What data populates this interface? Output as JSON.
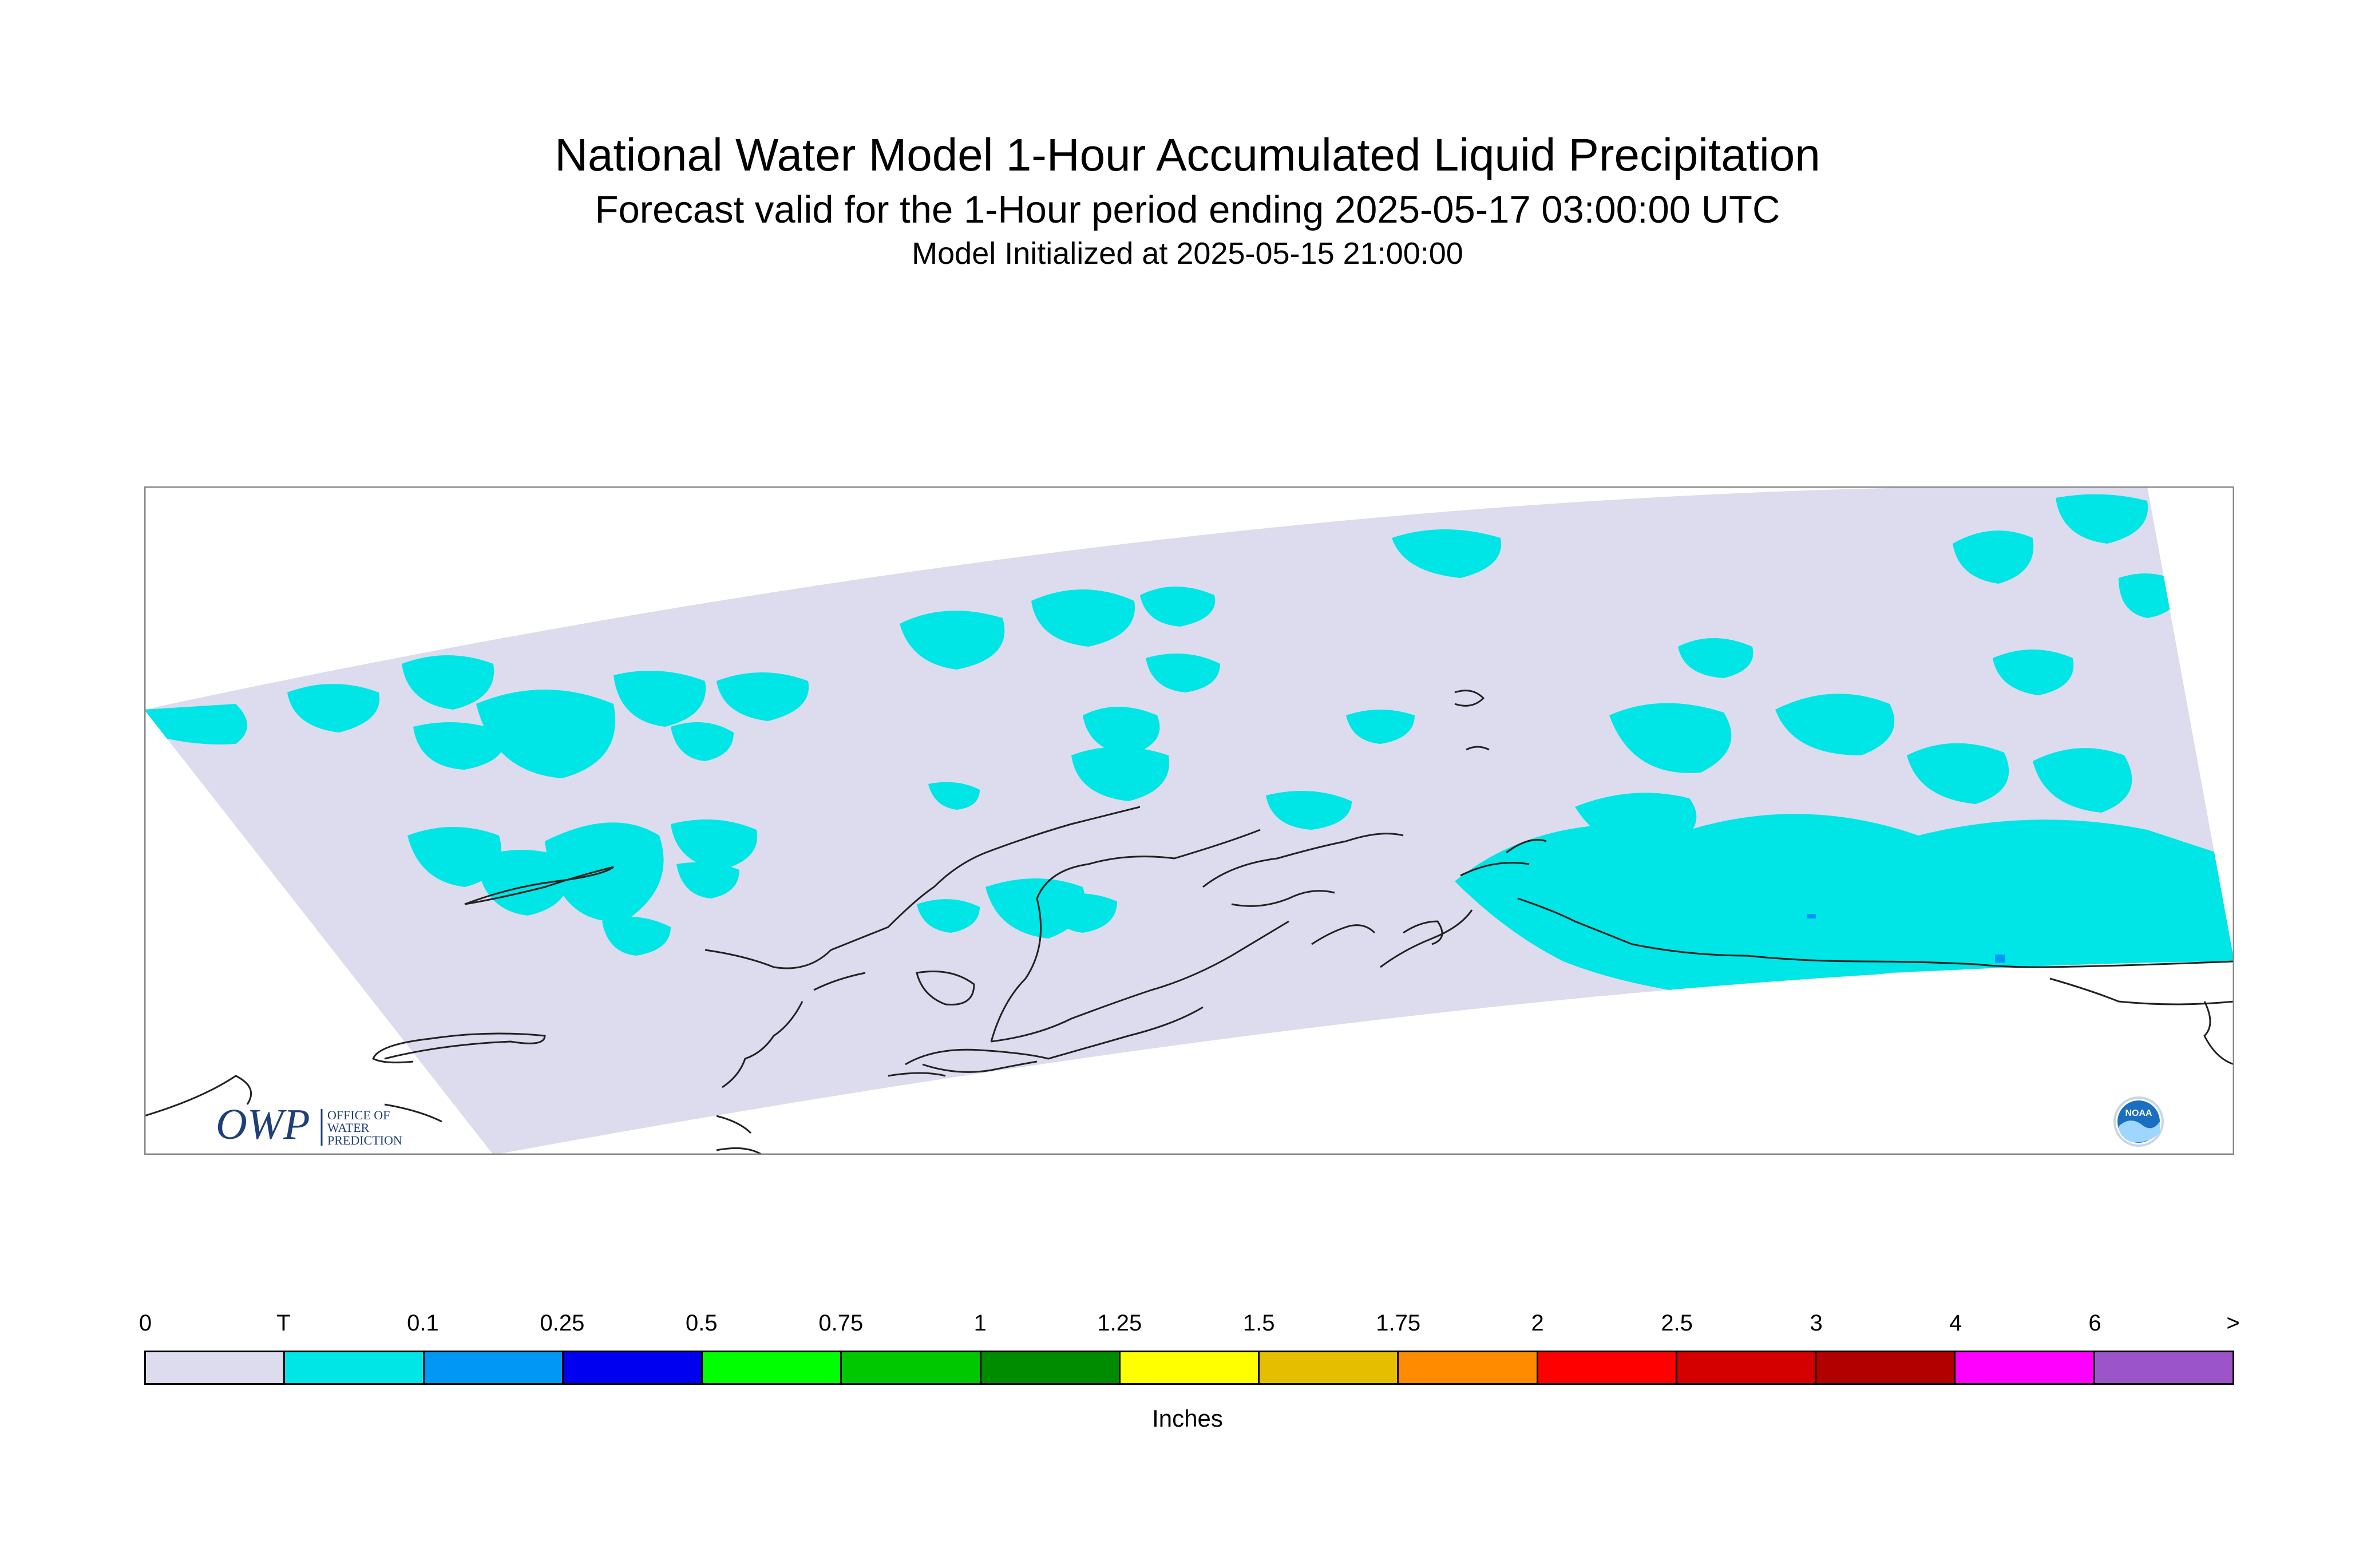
{
  "header": {
    "title": "National Water Model 1-Hour Accumulated Liquid Precipitation",
    "subtitle": "Forecast valid for the 1-Hour period ending 2025-05-17 03:00:00 UTC",
    "init": "Model Initialized at 2025-05-15 21:00:00"
  },
  "map": {
    "domain_color": "#dcdcee",
    "coast_color": "#222222",
    "frame_color": "#888888"
  },
  "logos": {
    "owp": {
      "mark": "OWP",
      "lines": [
        "OFFICE OF",
        "WATER",
        "PREDICTION"
      ],
      "color": "#1f3f7a"
    },
    "noaa": {
      "text": "NOAA",
      "color": "#1a6fc0"
    }
  },
  "legend": {
    "ticks": [
      "0",
      "T",
      "0.1",
      "0.25",
      "0.5",
      "0.75",
      "1",
      "1.25",
      "1.5",
      "1.75",
      "2",
      "2.5",
      "3",
      "4",
      "6",
      ">"
    ],
    "colors": [
      "#dcdcee",
      "#00e5e5",
      "#0097f5",
      "#0000f0",
      "#00ff00",
      "#00c800",
      "#008c00",
      "#ffff00",
      "#e6be00",
      "#ff8c00",
      "#ff0000",
      "#d40000",
      "#b00000",
      "#ff00ff",
      "#9b55c8"
    ],
    "units": "Inches"
  }
}
